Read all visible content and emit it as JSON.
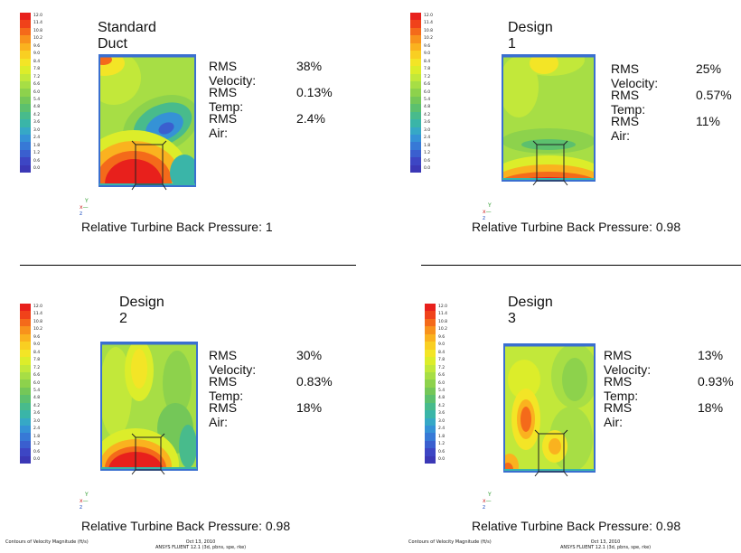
{
  "colorbar": {
    "ticks": [
      "12.0",
      "11.4",
      "10.8",
      "10.2",
      "9.6",
      "9.0",
      "8.4",
      "7.8",
      "7.2",
      "6.6",
      "6.0",
      "5.4",
      "4.8",
      "4.2",
      "3.6",
      "3.0",
      "2.4",
      "1.8",
      "1.2",
      "0.6",
      "0.0"
    ],
    "colors": [
      "#e8201c",
      "#f0421a",
      "#f46a1a",
      "#f8921c",
      "#fab21f",
      "#f9cf22",
      "#f3e526",
      "#dced2a",
      "#c2e83a",
      "#a7de45",
      "#8dd24c",
      "#74c758",
      "#5cc06e",
      "#48bb8c",
      "#3ab5a8",
      "#36a8c6",
      "#3592d6",
      "#3779d6",
      "#3a5fcf",
      "#3d46c4",
      "#3b38b6"
    ]
  },
  "axis_triad": {
    "y": "Y",
    "x": "x",
    "dash": "—",
    "z": "z"
  },
  "panels": [
    {
      "title": "Standard Duct",
      "stats": [
        {
          "label": "RMS Velocity:",
          "value": "38%"
        },
        {
          "label": "RMS Temp:",
          "value": "0.13%"
        },
        {
          "label": "RMS Air:",
          "value": "2.4%"
        }
      ],
      "back_pressure": "Relative Turbine Back Pressure: 1"
    },
    {
      "title": "Design 1",
      "stats": [
        {
          "label": "RMS Velocity:",
          "value": "25%"
        },
        {
          "label": "RMS Temp:",
          "value": "0.57%"
        },
        {
          "label": "RMS Air:",
          "value": "11%"
        }
      ],
      "back_pressure": "Relative Turbine Back Pressure: 0.98"
    },
    {
      "title": "Design 2",
      "stats": [
        {
          "label": "RMS Velocity:",
          "value": "30%"
        },
        {
          "label": "RMS Temp:",
          "value": "0.83%"
        },
        {
          "label": "RMS Air:",
          "value": "18%"
        }
      ],
      "back_pressure": "Relative Turbine Back Pressure: 0.98"
    },
    {
      "title": "Design 3",
      "stats": [
        {
          "label": "RMS Velocity:",
          "value": "13%"
        },
        {
          "label": "RMS Temp:",
          "value": "0.93%"
        },
        {
          "label": "RMS Air:",
          "value": "18%"
        }
      ],
      "back_pressure": "Relative Turbine Back Pressure: 0.98"
    }
  ],
  "footers": [
    {
      "left": "Contours of Velocity Magnitude (ft/s)",
      "date": "Oct 13, 2010",
      "software": "ANSYS FLUENT 12.1 (3d, pbns, spe, rke)"
    },
    {
      "left": "Contours of Velocity Magnitude (ft/s)",
      "date": "Oct 13, 2010",
      "software": "ANSYS FLUENT 12.1 (3d, pbns, spe, rke)"
    }
  ]
}
